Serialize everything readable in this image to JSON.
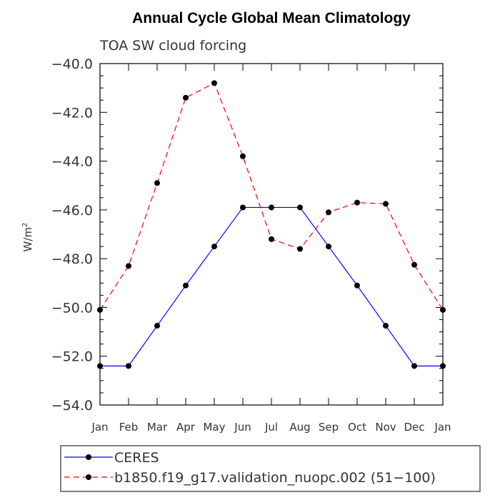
{
  "chart_data": {
    "type": "line",
    "title": "Annual Cycle Global Mean Climatology",
    "subtitle": "TOA SW cloud forcing",
    "ylabel": "W/m",
    "ylabel_superscript": "2",
    "xlabel": "",
    "categories": [
      "Jan",
      "Feb",
      "Mar",
      "Apr",
      "May",
      "Jun",
      "Jul",
      "Aug",
      "Sep",
      "Oct",
      "Nov",
      "Dec",
      "Jan"
    ],
    "ylim": [
      -54.0,
      -40.0
    ],
    "yticks": [
      "-40.0",
      "-42.0",
      "-44.0",
      "-46.0",
      "-48.0",
      "-50.0",
      "-52.0",
      "-54.0"
    ],
    "grid": false,
    "legend_position": "bottom",
    "series": [
      {
        "name": "CERES",
        "color": "#0000ff",
        "dash": "solid",
        "values": [
          -52.4,
          -52.4,
          -50.75,
          -49.1,
          -47.5,
          -45.9,
          -45.9,
          -45.9,
          -47.5,
          -49.1,
          -50.75,
          -52.4,
          -52.4
        ]
      },
      {
        "name": "b1850.f19_g17.validation_nuopc.002 (51-100)",
        "color": "#ff0000",
        "dash": "dashed",
        "values": [
          -50.1,
          -48.3,
          -44.9,
          -41.4,
          -40.8,
          -43.8,
          -47.2,
          -47.6,
          -46.1,
          -45.7,
          -45.75,
          -48.25,
          -50.1
        ]
      }
    ]
  }
}
